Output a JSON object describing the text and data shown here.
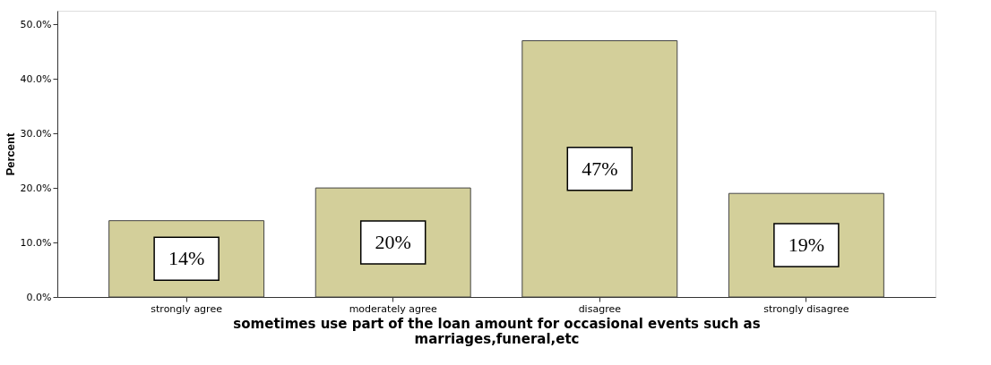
{
  "chart_data": {
    "type": "bar",
    "xlabel": "sometimes use part of the loan amount for occasional events such as marriages,funeral,etc",
    "ylabel": "Percent",
    "categories": [
      "strongly agree",
      "moderately agree",
      "disagree",
      "strongly disagree"
    ],
    "values": [
      14,
      20,
      47,
      19
    ],
    "value_labels": [
      "14%",
      "20%",
      "47%",
      "19%"
    ],
    "color": "#d3cf9a",
    "ylim": [
      0,
      52.5
    ],
    "yticks": [
      {
        "value": 0,
        "label": "0.0%"
      },
      {
        "value": 10,
        "label": "10.0%"
      },
      {
        "value": 20,
        "label": "20.0%"
      },
      {
        "value": 30,
        "label": "30.0%"
      },
      {
        "value": 40,
        "label": "40.0%"
      },
      {
        "value": 50,
        "label": "50.0%"
      }
    ],
    "grid": false
  }
}
